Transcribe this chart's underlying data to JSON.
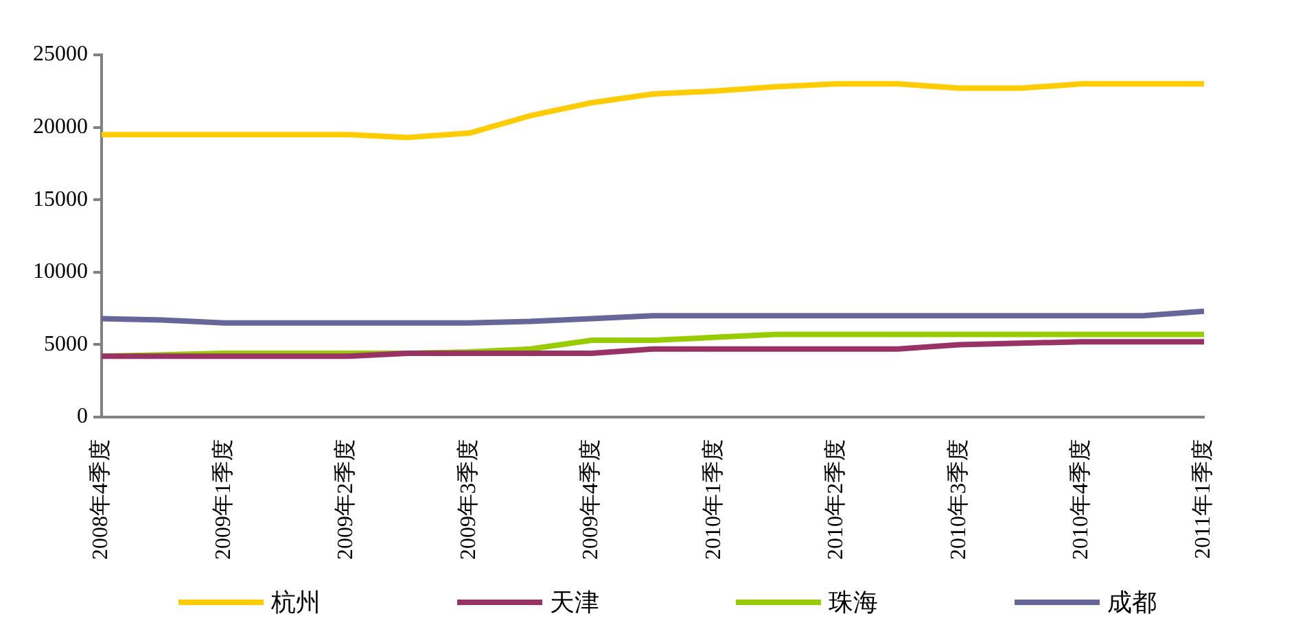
{
  "chart_data": {
    "type": "line",
    "categories": [
      "2008年4季度",
      null,
      "2009年1季度",
      null,
      "2009年2季度",
      null,
      "2009年3季度",
      null,
      "2009年4季度",
      null,
      "2010年1季度",
      null,
      "2010年2季度",
      null,
      "2010年3季度",
      null,
      "2010年4季度",
      null,
      "2011年1季度"
    ],
    "series": [
      {
        "name": "杭州",
        "color": "#ffcc00",
        "values": [
          19500,
          19500,
          19500,
          19500,
          19500,
          19300,
          19600,
          20800,
          21700,
          22300,
          22500,
          22800,
          23000,
          23000,
          22700,
          22700,
          23000,
          23000,
          23000
        ]
      },
      {
        "name": "天津",
        "color": "#993366",
        "values": [
          4200,
          4200,
          4200,
          4200,
          4200,
          4400,
          4400,
          4400,
          4400,
          4700,
          4700,
          4700,
          4700,
          4700,
          5000,
          5100,
          5200,
          5200,
          5200
        ]
      },
      {
        "name": "珠海",
        "color": "#99cc00",
        "values": [
          4200,
          4300,
          4400,
          4400,
          4400,
          4400,
          4500,
          4700,
          5300,
          5300,
          5500,
          5700,
          5700,
          5700,
          5700,
          5700,
          5700,
          5700,
          5700
        ]
      },
      {
        "name": "成都",
        "color": "#666699",
        "values": [
          6800,
          6700,
          6500,
          6500,
          6500,
          6500,
          6500,
          6600,
          6800,
          7000,
          7000,
          7000,
          7000,
          7000,
          7000,
          7000,
          7000,
          7000,
          7300
        ]
      }
    ],
    "ylim": [
      0,
      25000
    ],
    "yticks": [
      0,
      5000,
      10000,
      15000,
      20000,
      25000
    ],
    "grid": false,
    "legend": "bottom",
    "marker": "none",
    "line_style": "solid"
  }
}
